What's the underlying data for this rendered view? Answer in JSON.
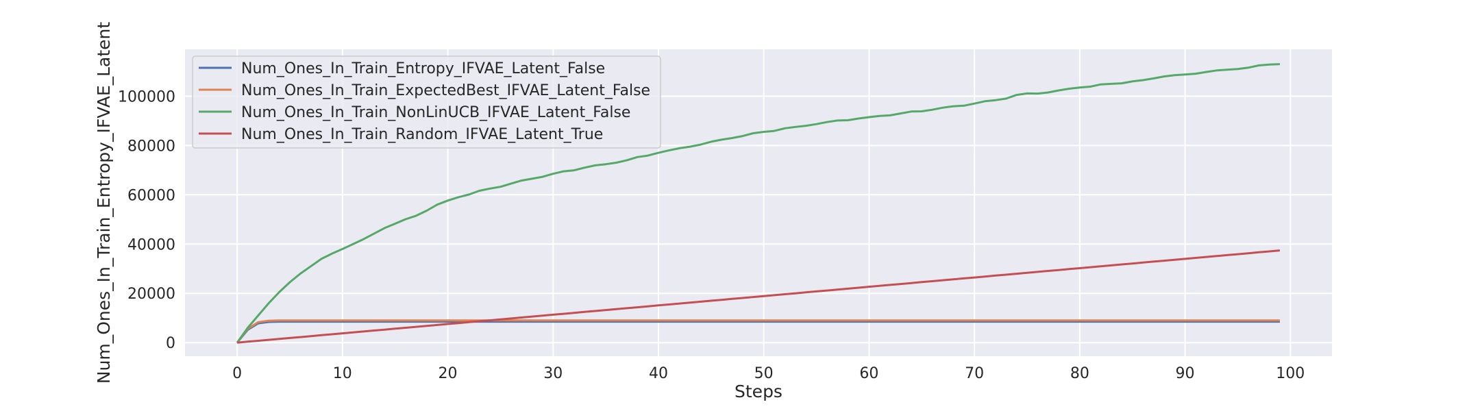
{
  "chart_data": {
    "type": "line",
    "xlabel": "Steps",
    "ylabel": "Num_Ones_In_Train_Entropy_IFVAE_Latent",
    "xlim": [
      -4.95,
      103.95
    ],
    "ylim": [
      -5500,
      119000
    ],
    "xticks": [
      0,
      10,
      20,
      30,
      40,
      50,
      60,
      70,
      80,
      90,
      100
    ],
    "yticks": [
      0,
      20000,
      40000,
      60000,
      80000,
      100000
    ],
    "grid": true,
    "legend_position": "upper-left",
    "series": [
      {
        "name": "Num_Ones_In_Train_Entropy_IFVAE_Latent_False",
        "color": "#4c72b0",
        "model": "plateau",
        "points": [
          [
            0,
            0
          ],
          [
            1,
            5200
          ],
          [
            2,
            7800
          ],
          [
            3,
            8400
          ],
          [
            4,
            8500
          ],
          [
            99,
            8500
          ]
        ]
      },
      {
        "name": "Num_Ones_In_Train_ExpectedBest_IFVAE_Latent_False",
        "color": "#dd8452",
        "model": "plateau",
        "points": [
          [
            0,
            0
          ],
          [
            1,
            5600
          ],
          [
            2,
            8300
          ],
          [
            3,
            8900
          ],
          [
            4,
            9000
          ],
          [
            99,
            9000
          ]
        ]
      },
      {
        "name": "Num_Ones_In_Train_NonLinUCB_IFVAE_Latent_False",
        "color": "#55a868",
        "model": "curve",
        "points": [
          [
            0,
            0
          ],
          [
            1,
            6000
          ],
          [
            2,
            11000
          ],
          [
            3,
            16000
          ],
          [
            4,
            20500
          ],
          [
            5,
            24500
          ],
          [
            6,
            28000
          ],
          [
            7,
            31000
          ],
          [
            8,
            34000
          ],
          [
            10,
            38000
          ],
          [
            12,
            42000
          ],
          [
            14,
            46500
          ],
          [
            17,
            51500
          ],
          [
            19,
            56000
          ],
          [
            21,
            59000
          ],
          [
            24,
            62500
          ],
          [
            26,
            64500
          ],
          [
            28,
            66500
          ],
          [
            30,
            68500
          ],
          [
            33,
            71000
          ],
          [
            36,
            73000
          ],
          [
            40,
            77000
          ],
          [
            43,
            79500
          ],
          [
            45,
            81500
          ],
          [
            47,
            83000
          ],
          [
            50,
            85500
          ],
          [
            53,
            87500
          ],
          [
            56,
            89500
          ],
          [
            60,
            91500
          ],
          [
            63,
            93000
          ],
          [
            66,
            94500
          ],
          [
            70,
            97000
          ],
          [
            73,
            99000
          ],
          [
            74,
            100500
          ],
          [
            77,
            101500
          ],
          [
            80,
            103500
          ],
          [
            83,
            105000
          ],
          [
            86,
            106500
          ],
          [
            88,
            108000
          ],
          [
            90,
            108800
          ],
          [
            92,
            109800
          ],
          [
            95,
            111000
          ],
          [
            98,
            112800
          ],
          [
            99,
            113000
          ]
        ]
      },
      {
        "name": "Num_Ones_In_Train_Random_IFVAE_Latent_True",
        "color": "#c44e52",
        "model": "linear",
        "points": [
          [
            0,
            0
          ],
          [
            99,
            37400
          ]
        ]
      }
    ]
  }
}
